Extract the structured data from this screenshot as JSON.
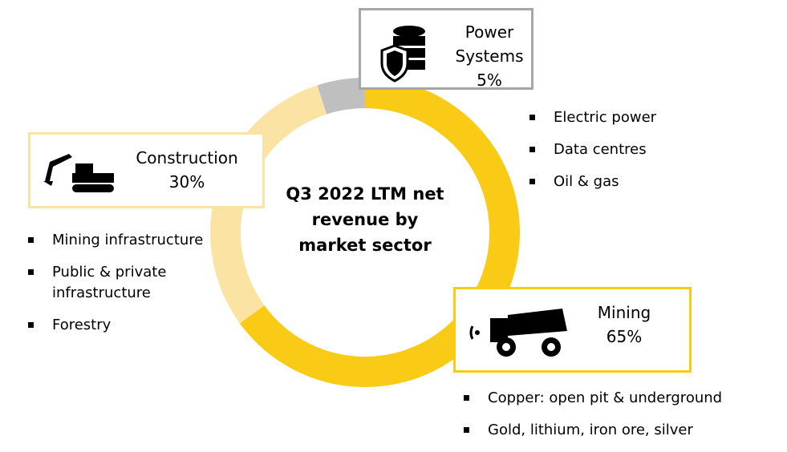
{
  "chart_data": {
    "type": "pie",
    "donut": true,
    "title": "Q3 2022 LTM net revenue by market sector",
    "categories": [
      "Mining",
      "Construction",
      "Power Systems"
    ],
    "values": [
      65,
      30,
      5
    ],
    "value_labels": [
      "65%",
      "30%",
      "5%"
    ],
    "colors": [
      "#f9cb16",
      "#fbe4a3",
      "#bfbfbf"
    ],
    "details": [
      [
        "Copper: open pit & underground",
        "Gold, lithium, iron ore, silver"
      ],
      [
        "Mining infrastructure",
        "Public & private infrastructure",
        "Forestry"
      ],
      [
        "Electric power",
        "Data centres",
        "Oil & gas"
      ]
    ]
  }
}
